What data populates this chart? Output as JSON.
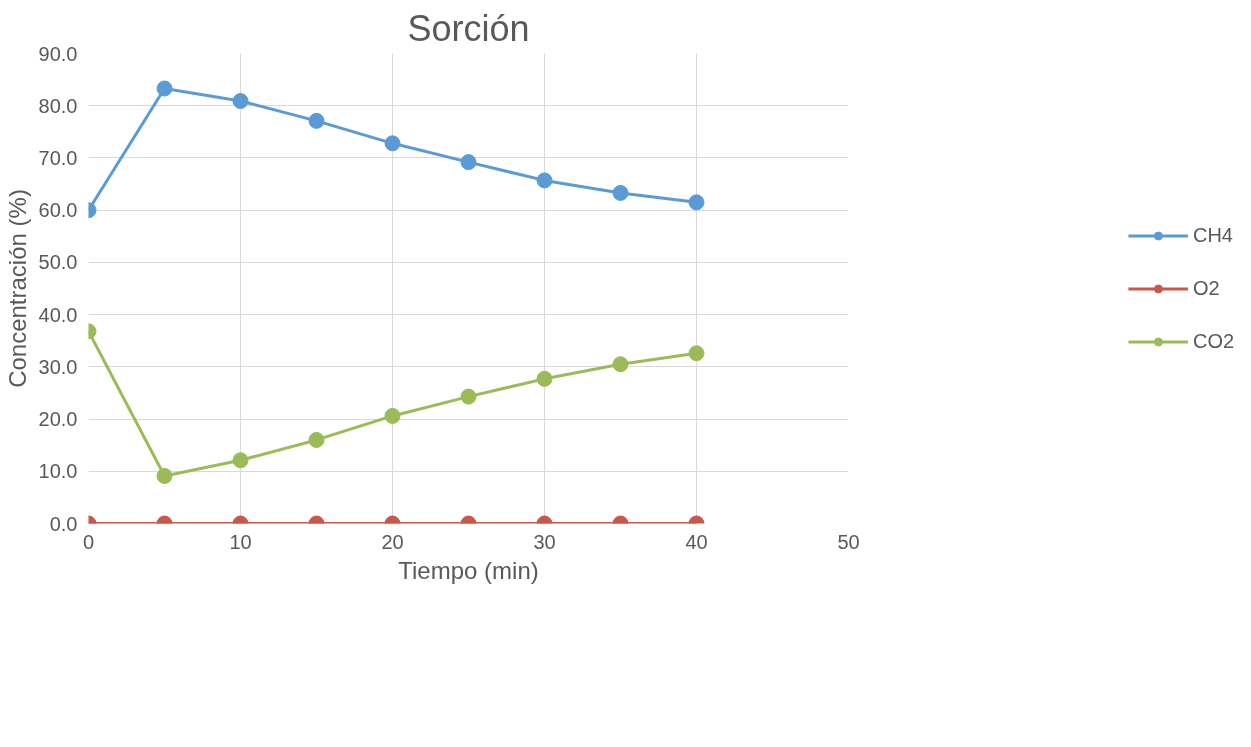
{
  "chart_data": {
    "type": "line",
    "title": "Sorción",
    "xlabel": "Tiempo (min)",
    "ylabel": "Concentración (%)",
    "x": [
      0,
      5,
      10,
      15,
      20,
      25,
      30,
      35,
      40
    ],
    "series": [
      {
        "name": "CH4",
        "color": "#5b9bd5",
        "values": [
          60.0,
          83.3,
          80.9,
          77.1,
          72.8,
          69.2,
          65.7,
          63.3,
          61.5
        ]
      },
      {
        "name": "O2",
        "color": "#c9574a",
        "values": [
          0,
          0,
          0,
          0,
          0,
          0,
          0,
          0,
          0
        ]
      },
      {
        "name": "CO2",
        "color": "#9bbb59",
        "values": [
          36.8,
          9.1,
          12.1,
          16.0,
          20.6,
          24.3,
          27.7,
          30.5,
          32.6
        ]
      }
    ],
    "xlim": [
      0,
      50
    ],
    "xticks": [
      0,
      10,
      20,
      30,
      40,
      50
    ],
    "ylim": [
      0,
      90
    ],
    "yticks": [
      {
        "value": 0,
        "label": "0.0"
      },
      {
        "value": 10,
        "label": "10.0"
      },
      {
        "value": 20,
        "label": "20.0"
      },
      {
        "value": 30,
        "label": "30.0"
      },
      {
        "value": 40,
        "label": "40.0"
      },
      {
        "value": 50,
        "label": "50.0"
      },
      {
        "value": 60,
        "label": "60.0"
      },
      {
        "value": 70,
        "label": "70.0"
      },
      {
        "value": 80,
        "label": "80.0"
      },
      {
        "value": 90,
        "label": "90.0"
      }
    ],
    "grid": true,
    "legend": "right",
    "marker": "circle",
    "line_style": "solid"
  }
}
